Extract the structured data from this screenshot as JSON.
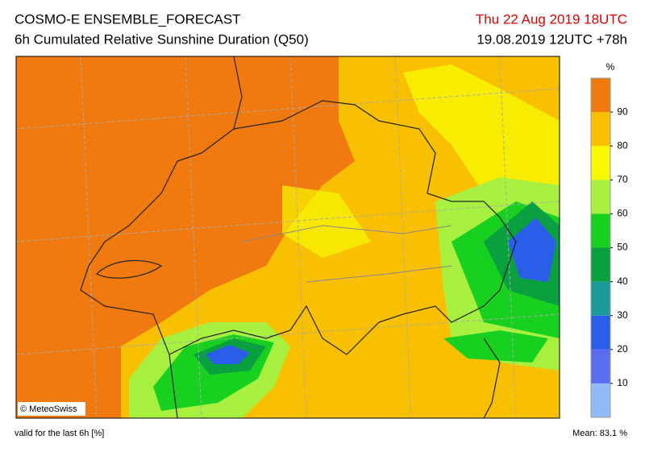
{
  "header": {
    "title": "COSMO-E ENSEMBLE_FORECAST",
    "subtitle": "6h Cumulated Relative Sunshine Duration (Q50)",
    "valid_time": "Thu 22 Aug 2019 18UTC",
    "run": "19.08.2019 12UTC +78h"
  },
  "legend": {
    "unit": "%",
    "ticks": [
      10,
      20,
      30,
      40,
      50,
      60,
      70,
      80,
      90
    ],
    "colors": [
      "#8fbcf5",
      "#5a6cf0",
      "#2a5ee8",
      "#1a9a9a",
      "#0aa040",
      "#18d020",
      "#a8f040",
      "#f8f800",
      "#f8c000",
      "#f07a10"
    ]
  },
  "map": {
    "copyright": "© MeteoSwiss"
  },
  "footer": {
    "note": "valid for the last 6h [%]",
    "mean": "Mean:  83.1 %"
  }
}
